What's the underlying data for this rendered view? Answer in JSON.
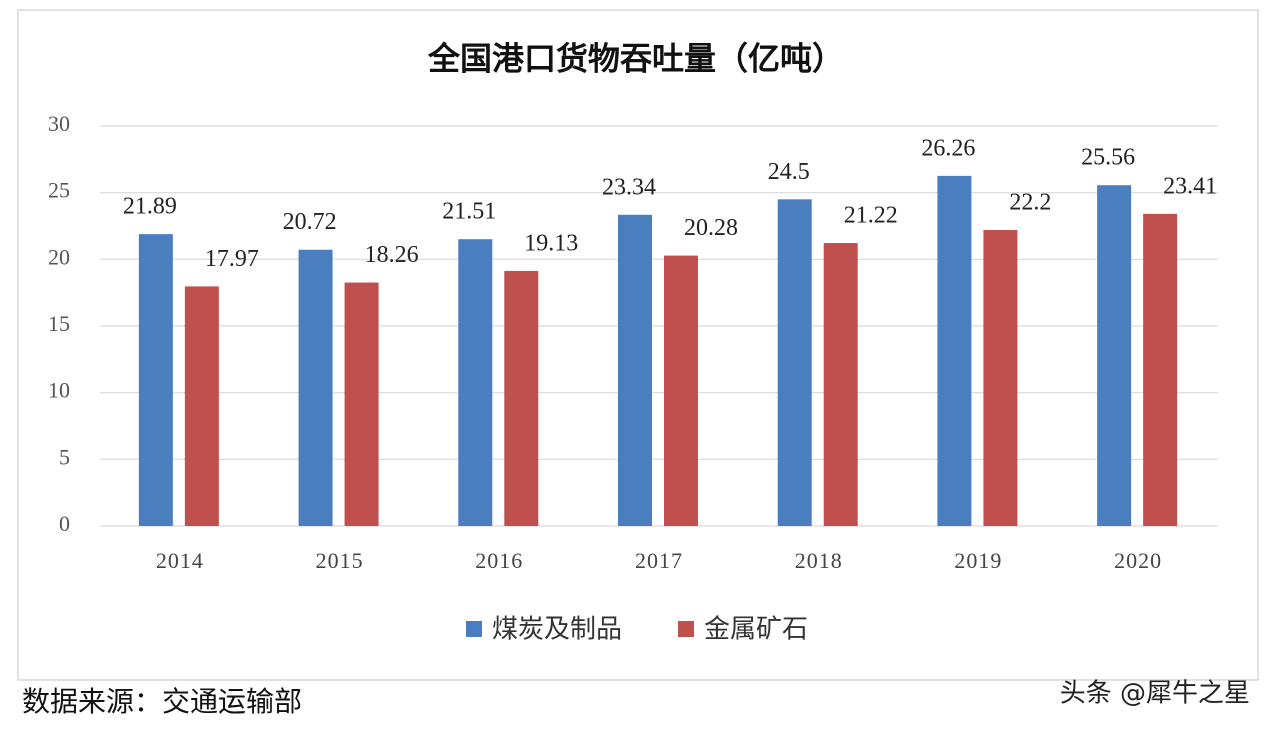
{
  "chart_data": {
    "type": "bar",
    "title": "全国港口货物吞吐量（亿吨）",
    "categories": [
      "2014",
      "2015",
      "2016",
      "2017",
      "2018",
      "2019",
      "2020"
    ],
    "series": [
      {
        "name": "煤炭及制品",
        "color": "#4a7ebf",
        "values": [
          21.89,
          20.72,
          21.51,
          23.34,
          24.5,
          26.26,
          25.56
        ]
      },
      {
        "name": "金属矿石",
        "color": "#c0504d",
        "values": [
          17.97,
          18.26,
          19.13,
          20.28,
          21.22,
          22.2,
          23.41
        ]
      }
    ],
    "ylim": [
      0,
      30
    ],
    "yticks": [
      0,
      5,
      10,
      15,
      20,
      25,
      30
    ],
    "grid": true,
    "legend": "bottom",
    "source": "数据来源：交通运输部",
    "watermark": "头条 @犀牛之星"
  }
}
